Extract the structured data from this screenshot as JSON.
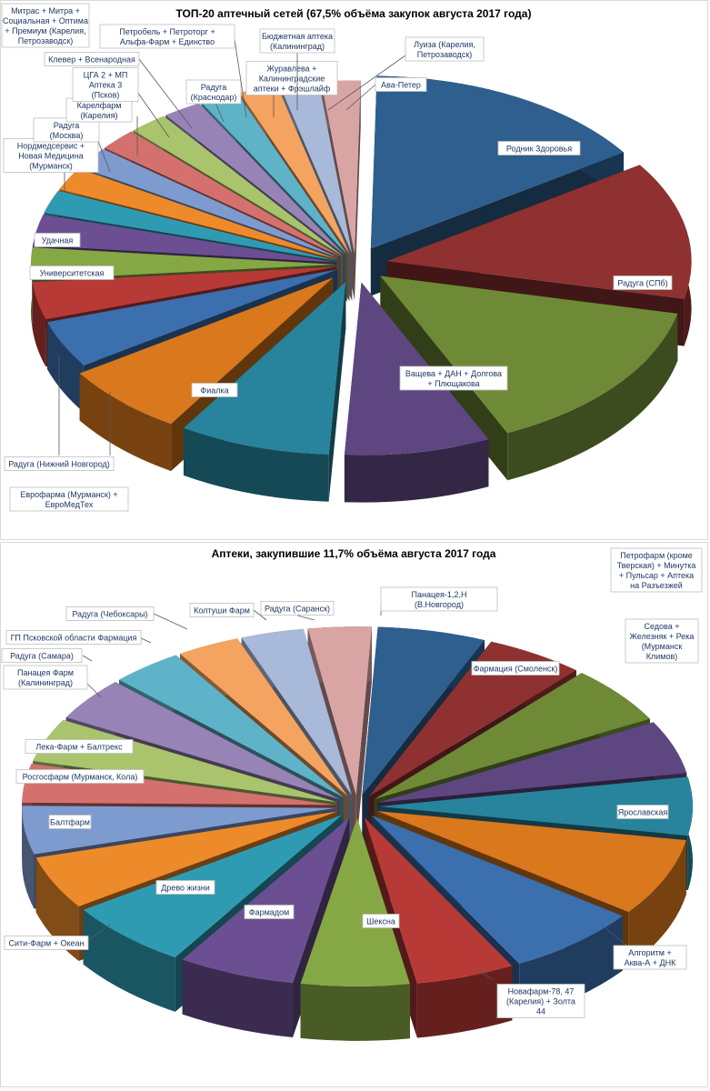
{
  "chart_data": [
    {
      "type": "pie",
      "title": "ТОП-20 аптечный сетей (67,5% объёма закупок августа 2017 года)",
      "slices": [
        {
          "label": "Родник Здоровья",
          "value": 14.8,
          "color": "#2e5f8e"
        },
        {
          "label": "Радуга (СПб)",
          "value": 12.5,
          "color": "#8e3130"
        },
        {
          "label": "Ващева + ДАН + Долгова + Плющакова",
          "value": 14.2,
          "color": "#6f8a36"
        },
        {
          "label": "Фиалка",
          "value": 7.5,
          "color": "#5e4780"
        },
        {
          "label": "Евро​фарма (Мурманск) + ЕвроМедТех",
          "value": 7.8,
          "color": "#27849c"
        },
        {
          "label": "Радуга (Нижний Новгород)",
          "value": 6.5,
          "color": "#d9781d"
        },
        {
          "label": "Университетская",
          "value": 4.3,
          "color": "#3b6fae"
        },
        {
          "label": "Удачная",
          "value": 3.4,
          "color": "#b73a37"
        },
        {
          "label": "Нордмедсервис + Новая Медицина (Мурманск)",
          "value": 2.9,
          "color": "#86a844"
        },
        {
          "label": "Радуга (Москва)",
          "value": 2.8,
          "color": "#6b4f92"
        },
        {
          "label": "Карелфарм (Карелия)",
          "value": 2.1,
          "color": "#2f9bb3"
        },
        {
          "label": "ЦГА 2 + МП Аптека 3 (Псков)",
          "value": 2.1,
          "color": "#ed8a2a"
        },
        {
          "label": "Клевер + Всенародная",
          "value": 2.0,
          "color": "#7e9bcf"
        },
        {
          "label": "Митрас + Митра + Социальная + Оптима + Премиум (Карелия, Петрозаводск)",
          "value": 2.0,
          "color": "#d4716e"
        },
        {
          "label": "Радуга (Краснодар)",
          "value": 2.0,
          "color": "#a9c46c"
        },
        {
          "label": "Петробель + Петроторг + Альфа-Фарм + Единство",
          "value": 2.0,
          "color": "#9783b6"
        },
        {
          "label": "Журавлева + Калининградские аптеки + Фрэшлайф",
          "value": 2.0,
          "color": "#5fb3c9"
        },
        {
          "label": "Бюджетная аптека (Калининград)",
          "value": 2.0,
          "color": "#f4a460"
        },
        {
          "label": "Луиза (Карелия, Петрозаводск)",
          "value": 2.0,
          "color": "#a9b9d9"
        },
        {
          "label": "Ава-Петер",
          "value": 2.0,
          "color": "#d9a5a4"
        }
      ]
    },
    {
      "type": "pie",
      "title": "Аптеки, закупившие 11,7% объёма августа 2017 года",
      "slices": [
        {
          "label": "Панацея-1,2,Н (В.Новгород)",
          "value": 6.0,
          "color": "#2e5f8e"
        },
        {
          "label": "Фармация (Смоленск)",
          "value": 5.5,
          "color": "#8e3130"
        },
        {
          "label": "Седова + Железняк + Река (Мурманск Климов)",
          "value": 6.0,
          "color": "#6f8a36"
        },
        {
          "label": "Петрофарм (кроме Тверская) + Минутка + Пульсар + Аптека на Разъезжей",
          "value": 5.5,
          "color": "#5e4780"
        },
        {
          "label": "Ярославская",
          "value": 6.0,
          "color": "#27849c"
        },
        {
          "label": "Алгоритм + Аква-А + ДНК",
          "value": 8.0,
          "color": "#d9781d"
        },
        {
          "label": "Новафарм-78, 47 (Карелия) + Золта 44",
          "value": 7.5,
          "color": "#3b6fae"
        },
        {
          "label": "Шексна",
          "value": 5.5,
          "color": "#b73a37"
        },
        {
          "label": "Фармадом",
          "value": 6.0,
          "color": "#86a844"
        },
        {
          "label": "Древо жизни",
          "value": 6.5,
          "color": "#6b4f92"
        },
        {
          "label": "Сити-Фарм + Океан",
          "value": 7.0,
          "color": "#2f9bb3"
        },
        {
          "label": "Балтфарм",
          "value": 5.5,
          "color": "#ed8a2a"
        },
        {
          "label": "Росгосфарм (Мурманск, Кола)",
          "value": 5.0,
          "color": "#7e9bcf"
        },
        {
          "label": "Лека-Фарм + Балтрекс",
          "value": 4.0,
          "color": "#d4716e"
        },
        {
          "label": "Панацея Фарм (Калининград)",
          "value": 4.5,
          "color": "#a9c46c"
        },
        {
          "label": "Радуга (Самара)",
          "value": 4.5,
          "color": "#9783b6"
        },
        {
          "label": "ГП Псковской области Фармация",
          "value": 4.0,
          "color": "#5fb3c9"
        },
        {
          "label": "Радуга (Чебоксары)",
          "value": 3.5,
          "color": "#f4a460"
        },
        {
          "label": "Колтуши Фарм",
          "value": 3.5,
          "color": "#a9b9d9"
        },
        {
          "label": "Радуга (Саранск)",
          "value": 3.5,
          "color": "#d9a5a4"
        }
      ]
    }
  ]
}
